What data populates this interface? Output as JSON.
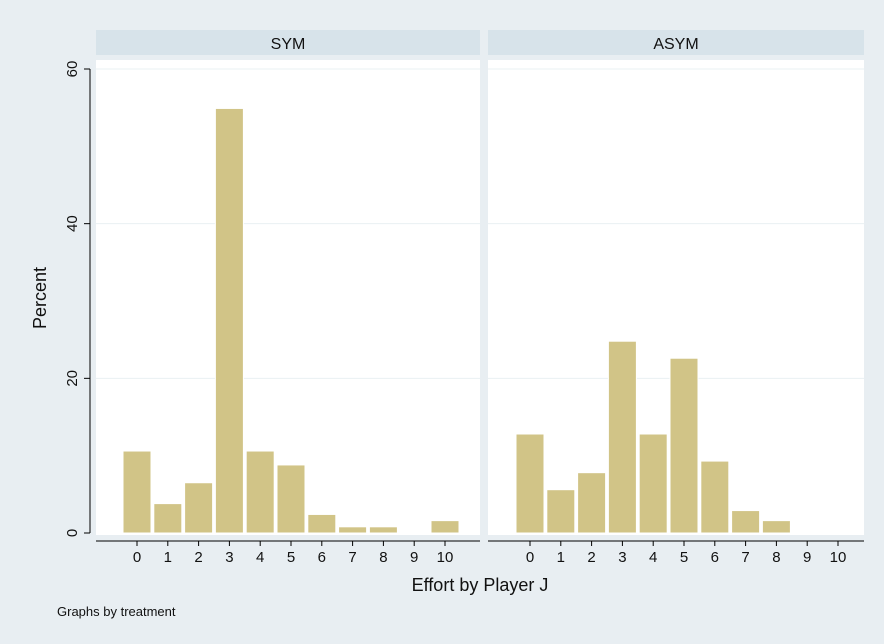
{
  "chart_data": {
    "type": "bar",
    "ylabel": "Percent",
    "xlabel": "Effort by Player J",
    "note": "Graphs by treatment",
    "ylim": [
      0,
      60
    ],
    "yticks": [
      0,
      20,
      40,
      60
    ],
    "grid": true,
    "categories": [
      "0",
      "1",
      "2",
      "3",
      "4",
      "5",
      "6",
      "7",
      "8",
      "9",
      "10"
    ],
    "bar_color": "#d1c487",
    "panels": [
      {
        "title": "SYM",
        "values": [
          10.6,
          3.8,
          6.5,
          54.9,
          10.6,
          8.8,
          2.4,
          0.8,
          0.8,
          0,
          1.6
        ]
      },
      {
        "title": "ASYM",
        "values": [
          12.8,
          5.6,
          7.8,
          24.8,
          12.8,
          22.6,
          9.3,
          2.9,
          1.6,
          0,
          0
        ]
      }
    ]
  }
}
